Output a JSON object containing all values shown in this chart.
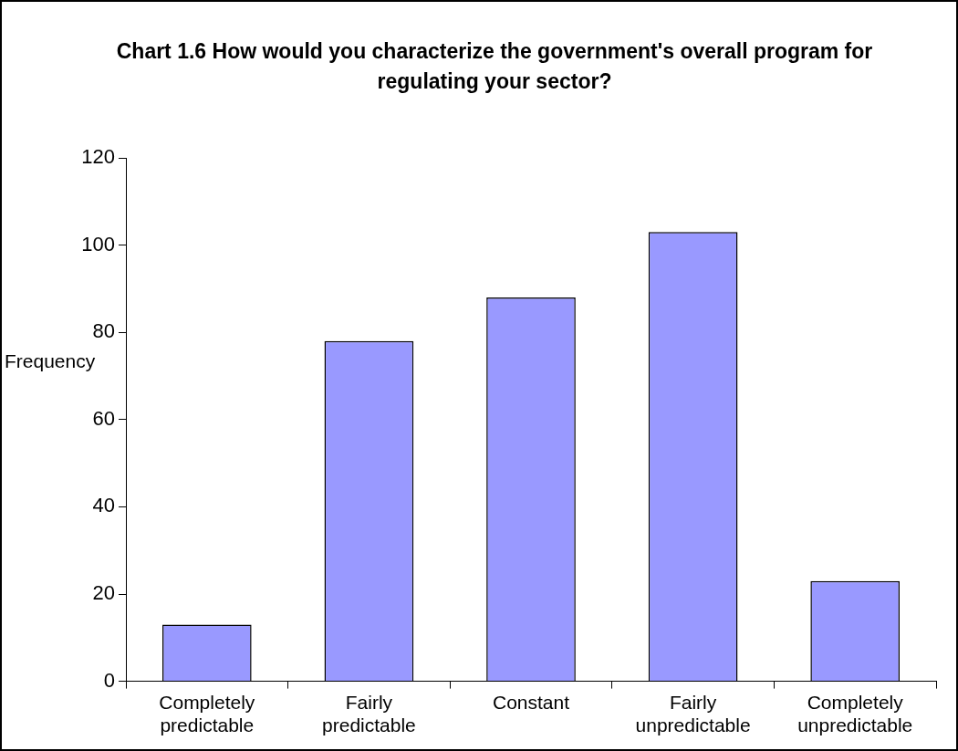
{
  "chart_data": {
    "type": "bar",
    "title": "Chart 1.6 How would you characterize the government's overall program for regulating your sector?",
    "ylabel": "Frequency",
    "categories": [
      "Completely predictable",
      "Fairly predictable",
      "Constant",
      "Fairly unpredictable",
      "Completely unpredictable"
    ],
    "values": [
      13,
      78,
      88,
      103,
      23
    ],
    "color": "#9999ff",
    "ylim": [
      0,
      120
    ],
    "yticks": [
      0,
      20,
      40,
      60,
      80,
      100,
      120
    ],
    "grid": false,
    "legend": false
  }
}
